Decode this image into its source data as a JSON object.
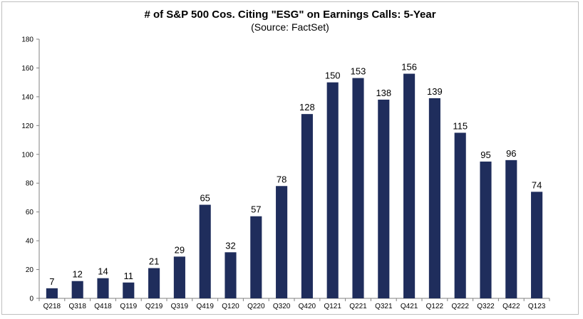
{
  "chart_data": {
    "type": "bar",
    "title": "# of S&P 500 Cos. Citing \"ESG\" on Earnings Calls: 5-Year",
    "subtitle": "(Source: FactSet)",
    "xlabel": "",
    "ylabel": "",
    "ylim": [
      0,
      180
    ],
    "yticks": [
      0,
      20,
      40,
      60,
      80,
      100,
      120,
      140,
      160,
      180
    ],
    "grid": false,
    "categories": [
      "Q218",
      "Q318",
      "Q418",
      "Q119",
      "Q219",
      "Q319",
      "Q419",
      "Q120",
      "Q220",
      "Q320",
      "Q420",
      "Q121",
      "Q221",
      "Q321",
      "Q421",
      "Q122",
      "Q222",
      "Q322",
      "Q422",
      "Q123"
    ],
    "values": [
      7,
      12,
      14,
      11,
      21,
      29,
      65,
      32,
      57,
      78,
      128,
      150,
      153,
      138,
      156,
      139,
      115,
      95,
      96,
      74
    ],
    "bar_color": "#1f2d5c"
  }
}
